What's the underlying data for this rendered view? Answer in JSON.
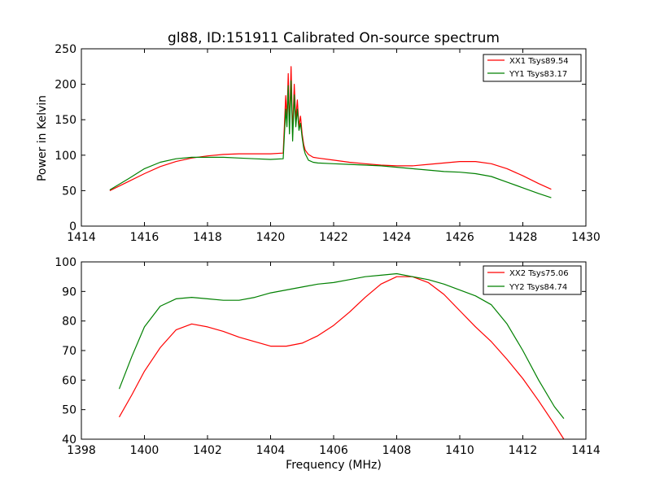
{
  "chart_data": [
    {
      "type": "line",
      "title": "gl88, ID:151911 Calibrated On-source spectrum",
      "xlabel": "",
      "ylabel": "Power in Kelvin",
      "xlim": [
        1414,
        1430
      ],
      "ylim": [
        0,
        250
      ],
      "xticks": [
        1414,
        1416,
        1418,
        1420,
        1422,
        1424,
        1426,
        1428,
        1430
      ],
      "yticks": [
        0,
        50,
        100,
        150,
        200,
        250
      ],
      "grid": false,
      "legend_position": "top-right",
      "series": [
        {
          "name": "XX1 Tsys89.54",
          "color": "#ff0000",
          "x": [
            1414.9,
            1415.5,
            1416.0,
            1416.5,
            1417.0,
            1417.5,
            1418.0,
            1418.5,
            1419.0,
            1419.5,
            1420.0,
            1420.4,
            1420.48,
            1420.52,
            1420.56,
            1420.6,
            1420.65,
            1420.7,
            1420.75,
            1420.8,
            1420.85,
            1420.9,
            1420.95,
            1421.0,
            1421.05,
            1421.1,
            1421.2,
            1421.35,
            1421.5,
            1422.0,
            1422.5,
            1423.0,
            1423.5,
            1424.0,
            1424.5,
            1425.0,
            1425.5,
            1426.0,
            1426.5,
            1427.0,
            1427.5,
            1428.0,
            1428.5,
            1428.9
          ],
          "y": [
            50,
            63,
            74,
            84,
            91,
            96,
            99,
            101,
            102,
            102,
            102,
            103,
            184,
            150,
            215,
            140,
            225,
            130,
            200,
            150,
            178,
            140,
            155,
            130,
            115,
            107,
            101,
            97,
            96,
            93,
            90,
            88,
            86,
            85,
            85,
            87,
            89,
            91,
            91,
            88,
            81,
            71,
            60,
            52
          ]
        },
        {
          "name": "YY1 Tsys83.17",
          "color": "#008000",
          "x": [
            1414.9,
            1415.5,
            1416.0,
            1416.5,
            1417.0,
            1417.5,
            1418.0,
            1418.5,
            1419.0,
            1419.5,
            1420.0,
            1420.4,
            1420.48,
            1420.52,
            1420.56,
            1420.6,
            1420.65,
            1420.7,
            1420.75,
            1420.8,
            1420.85,
            1420.9,
            1420.95,
            1421.0,
            1421.05,
            1421.1,
            1421.2,
            1421.35,
            1421.5,
            1422.0,
            1422.5,
            1423.0,
            1423.5,
            1424.0,
            1424.5,
            1425.0,
            1425.5,
            1426.0,
            1426.5,
            1427.0,
            1427.5,
            1428.0,
            1428.5,
            1428.9
          ],
          "y": [
            51,
            67,
            81,
            90,
            95,
            97,
            97,
            97,
            96,
            95,
            94,
            95,
            165,
            140,
            198,
            130,
            205,
            120,
            185,
            140,
            165,
            135,
            145,
            125,
            110,
            102,
            93,
            90,
            89,
            88,
            87,
            86,
            85,
            83,
            81,
            79,
            77,
            76,
            74,
            70,
            62,
            54,
            46,
            40
          ]
        }
      ]
    },
    {
      "type": "line",
      "title": "",
      "xlabel": "Frequency (MHz)",
      "ylabel": "",
      "xlim": [
        1398,
        1414
      ],
      "ylim": [
        40,
        100
      ],
      "xticks": [
        1398,
        1400,
        1402,
        1404,
        1406,
        1408,
        1410,
        1412,
        1414
      ],
      "yticks": [
        40,
        50,
        60,
        70,
        80,
        90,
        100
      ],
      "grid": false,
      "legend_position": "top-right",
      "series": [
        {
          "name": "XX2 Tsys75.06",
          "color": "#ff0000",
          "x": [
            1399.2,
            1399.6,
            1400.0,
            1400.5,
            1401.0,
            1401.5,
            1402.0,
            1402.5,
            1403.0,
            1403.5,
            1404.0,
            1404.5,
            1405.0,
            1405.5,
            1406.0,
            1406.5,
            1407.0,
            1407.5,
            1408.0,
            1408.5,
            1409.0,
            1409.5,
            1410.0,
            1410.5,
            1411.0,
            1411.5,
            1412.0,
            1412.5,
            1413.0,
            1413.3
          ],
          "y": [
            47.5,
            55,
            63,
            71,
            77,
            79,
            78,
            76.5,
            74.5,
            73,
            71.5,
            71.5,
            72.5,
            75,
            78.5,
            83,
            88,
            92.5,
            95,
            95,
            93,
            89,
            83.5,
            78,
            73,
            67,
            60.5,
            53,
            45,
            40
          ]
        },
        {
          "name": "YY2 Tsys84.74",
          "color": "#008000",
          "x": [
            1399.2,
            1399.6,
            1400.0,
            1400.5,
            1401.0,
            1401.5,
            1402.0,
            1402.5,
            1403.0,
            1403.5,
            1404.0,
            1404.5,
            1405.0,
            1405.5,
            1406.0,
            1406.5,
            1407.0,
            1407.5,
            1408.0,
            1408.5,
            1409.0,
            1409.5,
            1410.0,
            1410.5,
            1411.0,
            1411.5,
            1412.0,
            1412.5,
            1413.0,
            1413.3
          ],
          "y": [
            57,
            68,
            78,
            85,
            87.5,
            88,
            87.5,
            87,
            87,
            88,
            89.5,
            90.5,
            91.5,
            92.5,
            93,
            94,
            95,
            95.5,
            96,
            95,
            94,
            92.5,
            90.5,
            88.5,
            85.5,
            79,
            70,
            60,
            51,
            47
          ]
        }
      ]
    }
  ]
}
